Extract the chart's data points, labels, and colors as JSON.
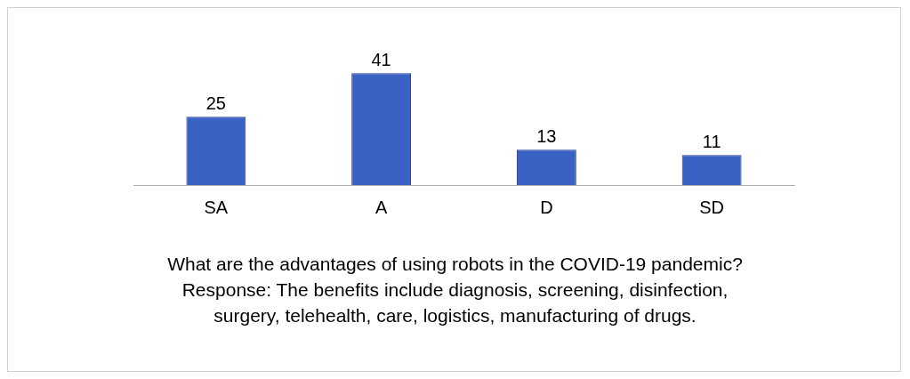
{
  "chart_data": {
    "type": "bar",
    "categories": [
      "SA",
      "A",
      "D",
      "SD"
    ],
    "values": [
      25,
      41,
      13,
      11
    ],
    "color": "#3a62c4",
    "xlabel": "What are the advantages of using robots in the COVID-19 pandemic? Response: The benefits include diagnosis, screening, disinfection, surgery, telehealth, care, logistics, manufacturing of drugs.",
    "data_labels": true,
    "grid": false,
    "legend": false
  }
}
